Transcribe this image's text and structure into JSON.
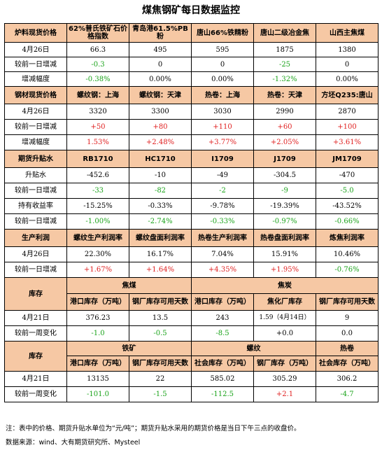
{
  "title": "煤焦钢矿每日数据监控",
  "s1": {
    "headers": [
      "炉料现货价格",
      "62%普氏铁矿石价格指数",
      "青岛港61.5%PB粉",
      "唐山66%铁精粉",
      "唐山二级冶金焦",
      "山西主焦煤"
    ],
    "rows": [
      [
        "4月26日",
        "66.3",
        "495",
        "595",
        "1875",
        "1380"
      ],
      [
        "较前一日增减",
        "-0.3",
        "0",
        "0",
        "-25",
        "0"
      ],
      [
        "增减幅度",
        "-0.38%",
        "0.00%",
        "0.00%",
        "-1.32%",
        "0.00%"
      ]
    ]
  },
  "s2": {
    "headers": [
      "钢材现货价格",
      "螺纹钢：上海",
      "螺纹钢：天津",
      "热卷：上海",
      "热卷：天津",
      "方坯Q235:唐山"
    ],
    "rows": [
      [
        "4月26日",
        "3320",
        "3300",
        "3030",
        "2990",
        "2870"
      ],
      [
        "较前一日增减",
        "+50",
        "+80",
        "+110",
        "+60",
        "+100"
      ],
      [
        "增减幅度",
        "1.53%",
        "+2.48%",
        "+3.77%",
        "+2.05%",
        "+3.61%"
      ]
    ]
  },
  "s3": {
    "headers": [
      "期货升贴水",
      "RB1710",
      "HC1710",
      "I1709",
      "J1709",
      "JM1709"
    ],
    "rows": [
      [
        "升贴水",
        "-452.6",
        "-10",
        "-49",
        "-304.5",
        "-470"
      ],
      [
        "较前一日增减",
        "-33",
        "-82",
        "-2",
        "-9",
        "-5.0"
      ],
      [
        "持有收益率",
        "-15.25%",
        "-0.33%",
        "-9.78%",
        "-19.39%",
        "-43.52%"
      ],
      [
        "较前一日增减",
        "-1.00%",
        "-2.74%",
        "-0.33%",
        "-0.97%",
        "-0.66%"
      ]
    ]
  },
  "s4": {
    "headers": [
      "生产利润",
      "螺纹生产利润率",
      "螺纹盘面利润率",
      "热卷生产利润率",
      "热卷盘面利润率",
      "炼焦利润率"
    ],
    "rows": [
      [
        "4月26日",
        "22.30%",
        "16.17%",
        "7.04%",
        "15.91%",
        "10.46%"
      ],
      [
        "较前一日增减",
        "+1.67%",
        "+1.64%",
        "+4.35%",
        "+1.95%",
        "-0.76%"
      ]
    ]
  },
  "s5": {
    "label": "库存",
    "group1": "焦煤",
    "group2": "焦炭",
    "sub": [
      "港口库存（万吨）",
      "钢厂库存可用天数",
      "港口库存（万吨）",
      "焦化厂库存",
      "钢厂库存可用天数"
    ],
    "rows": [
      [
        "4月21日",
        "376.23",
        "13.5",
        "243",
        "1.59（4月14日）",
        "9"
      ],
      [
        "较前一周变化",
        "-1.0",
        "-0.5",
        "-8.5",
        "+0.0",
        "0.0"
      ]
    ]
  },
  "s6": {
    "label": "库存",
    "group1": "铁矿",
    "group2": "螺纹",
    "group3": "热卷",
    "sub": [
      "港口库存（万吨）",
      "钢厂库存可用天数",
      "社会库存（万吨）",
      "钢厂库存（万吨）",
      "社会库存（万吨）"
    ],
    "rows": [
      [
        "4月21日",
        "13135",
        "22",
        "585.02",
        "305.29",
        "306.2"
      ],
      [
        "较前一周变化",
        "-101.0",
        "-1.5",
        "-112.5",
        "+2.1",
        "-4.7"
      ]
    ]
  },
  "note": "注：表中的价格、期货升贴水单位为“元/吨”；期货升贴水采用的期货价格是当日下午三点的收盘价。",
  "source": "数据来源：wind、大有期货研究所、Mysteel"
}
